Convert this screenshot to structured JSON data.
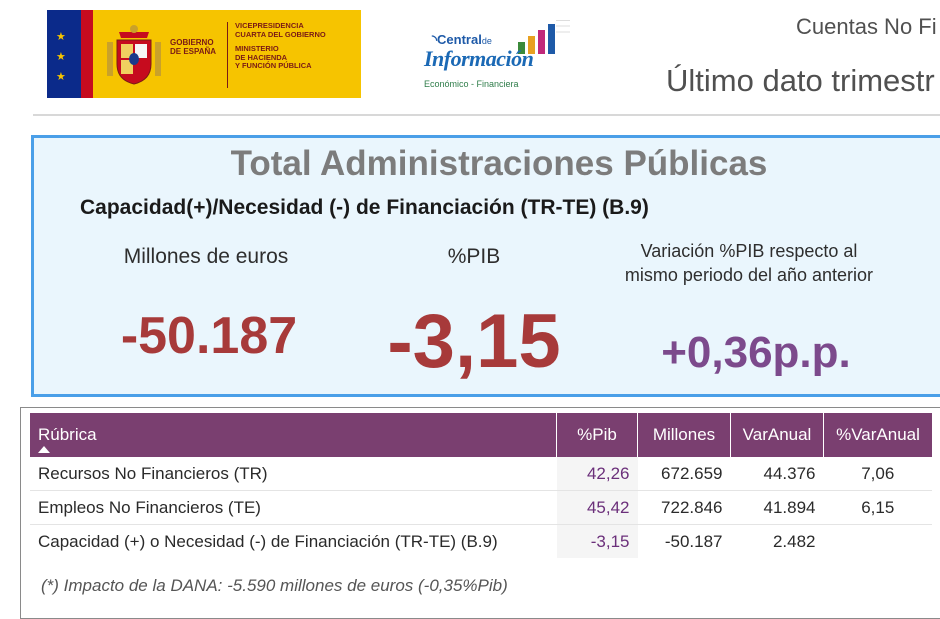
{
  "header": {
    "gov_name_line1": "GOBIERNO",
    "gov_name_line2": "DE ESPAÑA",
    "gov_text": [
      "VICEPRESIDENCIA",
      "CUARTA DEL GOBIERNO",
      "MINISTERIO",
      "DE HACIENDA",
      "Y FUNCIÓN PÚBLICA"
    ],
    "central_small": "de",
    "central_word": "Central",
    "central_info": "Información",
    "central_sub": "Económico - Financiera",
    "title": "Cuentas No Fi",
    "subtitle": "Último dato trimestr"
  },
  "card": {
    "title": "Total Administraciones Públicas",
    "subtitle": "Capacidad(+)/Necesidad (-) de Financiación (TR-TE) (B.9)",
    "kpis": [
      {
        "label": "Millones de euros",
        "value": "-50.187"
      },
      {
        "label": "%PIB",
        "value": "-3,15"
      },
      {
        "label": "Variación %PIB respecto al mismo periodo del año anterior",
        "value": "+0,36p.p."
      }
    ]
  },
  "table": {
    "columns": [
      "Rúbrica",
      "%Pib",
      "Millones",
      "VarAnual",
      "%VarAnual"
    ],
    "rows": [
      [
        "Recursos No Financieros (TR)",
        "42,26",
        "672.659",
        "44.376",
        "7,06"
      ],
      [
        "Empleos No Financieros (TE)",
        "45,42",
        "722.846",
        "41.894",
        "6,15"
      ],
      [
        "Capacidad (+) o Necesidad (-) de Financiación (TR-TE) (B.9)",
        "-3,15",
        "-50.187",
        "2.482",
        ""
      ]
    ],
    "footnote": "(*) Impacto de la DANA: -5.590 millones de euros (-0,35%Pib)"
  },
  "colors": {
    "card_border": "#4a9fe8",
    "card_bg": "#eaf6fd",
    "kpi_red": "#a73a3a",
    "kpi_purple": "#7c4a8c",
    "table_header": "#7a3f70",
    "gov_yellow": "#f6c400"
  }
}
